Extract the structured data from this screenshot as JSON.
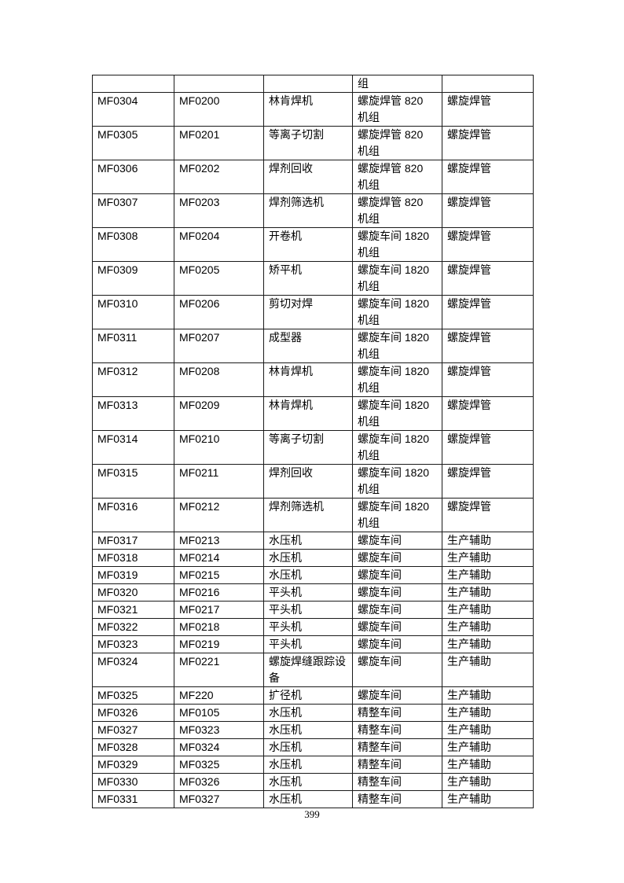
{
  "page_number": "399",
  "table": {
    "rows": [
      [
        "",
        "",
        "",
        "组",
        ""
      ],
      [
        "MF0304",
        "MF0200",
        "林肯焊机",
        "螺旋焊管 820 机组",
        "螺旋焊管"
      ],
      [
        "MF0305",
        "MF0201",
        "等离子切割",
        "螺旋焊管 820 机组",
        "螺旋焊管"
      ],
      [
        "MF0306",
        "MF0202",
        "焊剂回收",
        "螺旋焊管 820 机组",
        "螺旋焊管"
      ],
      [
        "MF0307",
        "MF0203",
        "焊剂筛选机",
        "螺旋焊管 820 机组",
        "螺旋焊管"
      ],
      [
        "MF0308",
        "MF0204",
        "开卷机",
        "螺旋车间 1820 机组",
        "螺旋焊管"
      ],
      [
        "MF0309",
        "MF0205",
        "矫平机",
        "螺旋车间 1820 机组",
        "螺旋焊管"
      ],
      [
        "MF0310",
        "MF0206",
        "剪切对焊",
        "螺旋车间 1820 机组",
        "螺旋焊管"
      ],
      [
        "MF0311",
        "MF0207",
        "成型器",
        "螺旋车间 1820 机组",
        "螺旋焊管"
      ],
      [
        "MF0312",
        "MF0208",
        "林肯焊机",
        "螺旋车间 1820 机组",
        "螺旋焊管"
      ],
      [
        "MF0313",
        "MF0209",
        "林肯焊机",
        "螺旋车间 1820 机组",
        "螺旋焊管"
      ],
      [
        "MF0314",
        "MF0210",
        "等离子切割",
        "螺旋车间 1820 机组",
        "螺旋焊管"
      ],
      [
        "MF0315",
        "MF0211",
        "焊剂回收",
        "螺旋车间 1820 机组",
        "螺旋焊管"
      ],
      [
        "MF0316",
        "MF0212",
        "焊剂筛选机",
        "螺旋车间 1820 机组",
        "螺旋焊管"
      ],
      [
        "MF0317",
        "MF0213",
        "水压机",
        "螺旋车间",
        "生产辅助"
      ],
      [
        "MF0318",
        "MF0214",
        "水压机",
        "螺旋车间",
        "生产辅助"
      ],
      [
        "MF0319",
        "MF0215",
        "水压机",
        "螺旋车间",
        "生产辅助"
      ],
      [
        "MF0320",
        "MF0216",
        "平头机",
        "螺旋车间",
        "生产辅助"
      ],
      [
        "MF0321",
        "MF0217",
        "平头机",
        "螺旋车间",
        "生产辅助"
      ],
      [
        "MF0322",
        "MF0218",
        "平头机",
        "螺旋车间",
        "生产辅助"
      ],
      [
        "MF0323",
        "MF0219",
        "平头机",
        "螺旋车间",
        "生产辅助"
      ],
      [
        "MF0324",
        "MF0221",
        "螺旋焊缝跟踪设备",
        "螺旋车间",
        "生产辅助"
      ],
      [
        "MF0325",
        "MF220",
        "扩径机",
        "螺旋车间",
        "生产辅助"
      ],
      [
        "MF0326",
        "MF0105",
        "水压机",
        "精整车间",
        "生产辅助"
      ],
      [
        "MF0327",
        "MF0323",
        "水压机",
        "精整车间",
        "生产辅助"
      ],
      [
        "MF0328",
        "MF0324",
        "水压机",
        "精整车间",
        "生产辅助"
      ],
      [
        "MF0329",
        "MF0325",
        "水压机",
        "精整车间",
        "生产辅助"
      ],
      [
        "MF0330",
        "MF0326",
        "水压机",
        "精整车间",
        "生产辅助"
      ],
      [
        "MF0331",
        "MF0327",
        "水压机",
        "精整车间",
        "生产辅助"
      ]
    ]
  }
}
